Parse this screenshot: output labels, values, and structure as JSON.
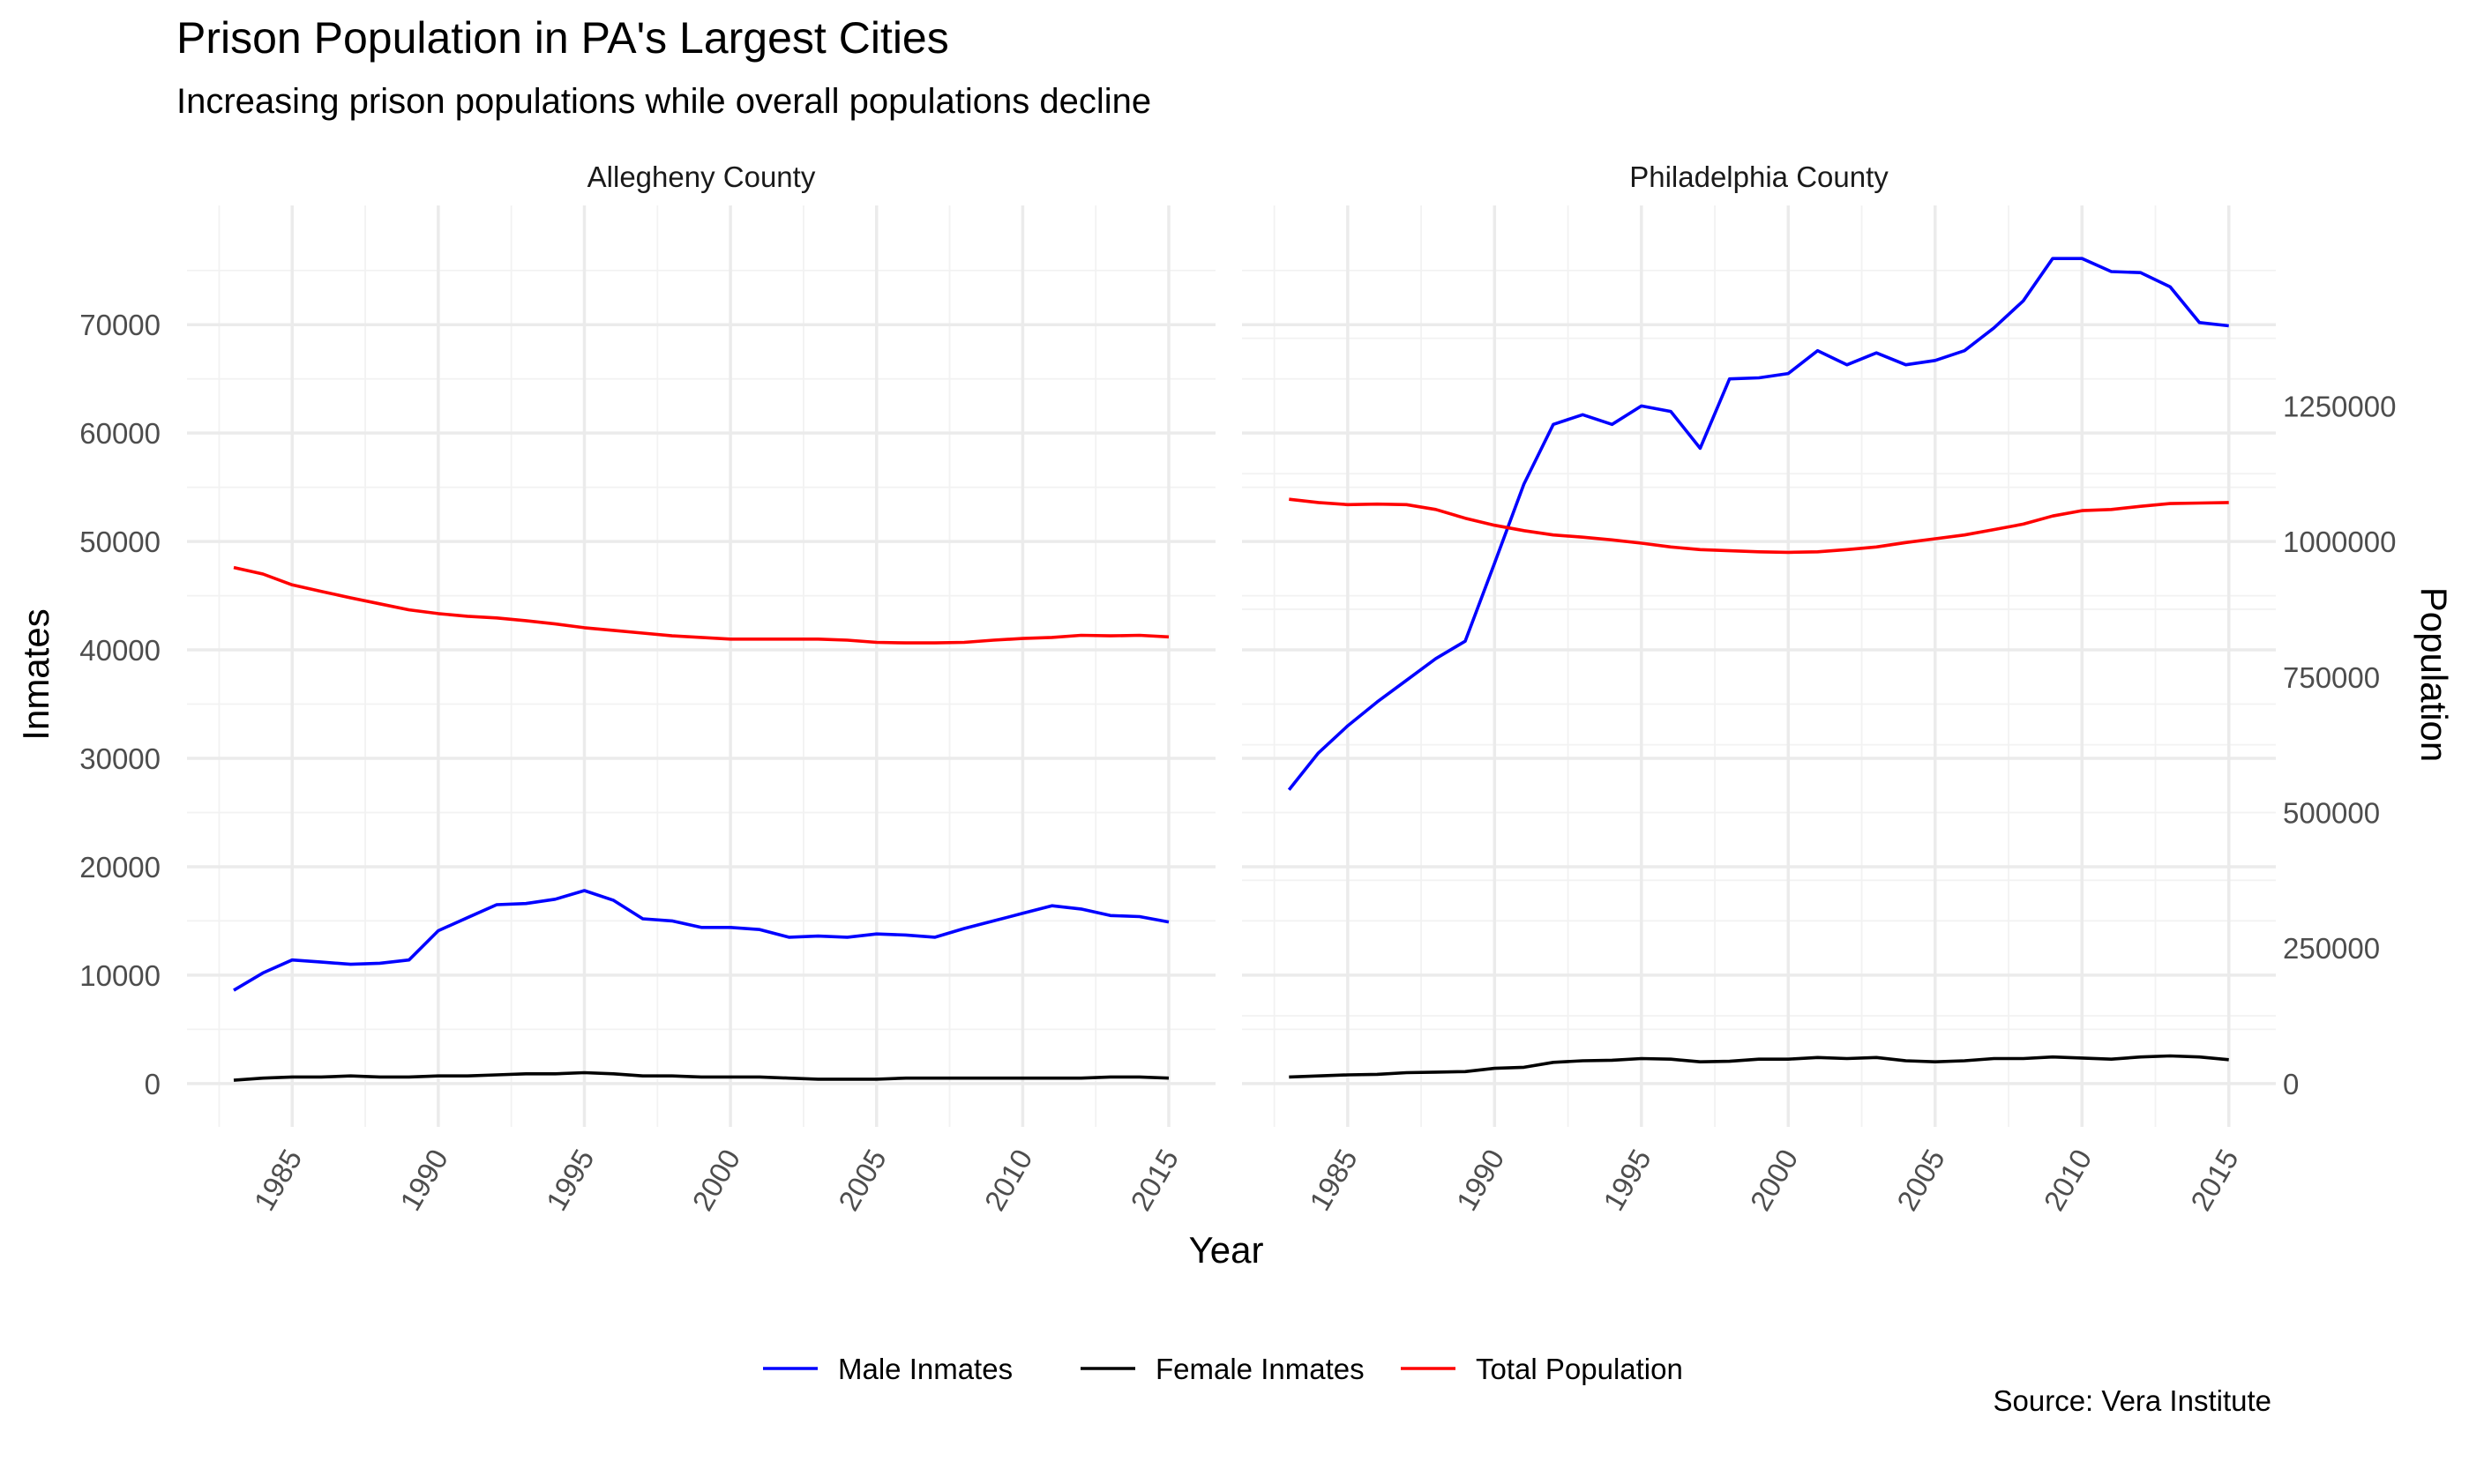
{
  "chart_data": {
    "type": "line",
    "title": "Prison Population in PA's Largest Cities",
    "subtitle": "Increasing prison populations while overall populations decline",
    "xlabel": "Year",
    "ylabel_left": "Inmates",
    "ylabel_right": "Population",
    "caption": "Source: Vera Institute",
    "xlim": [
      1983,
      2015
    ],
    "ylim_left": [
      -4000,
      81000
    ],
    "ylim_right": [
      -80000,
      1620000
    ],
    "right_axis_factor": 20,
    "x_ticks": [
      1985,
      1990,
      1995,
      2000,
      2005,
      2010,
      2015
    ],
    "x_tick_labels": [
      "1985",
      "1990",
      "1995",
      "2000",
      "2005",
      "2010",
      "2015"
    ],
    "y_ticks_left": [
      0,
      10000,
      20000,
      30000,
      40000,
      50000,
      60000,
      70000
    ],
    "y_tick_labels_left": [
      "0",
      "10000",
      "20000",
      "30000",
      "40000",
      "50000",
      "60000",
      "70000"
    ],
    "y_ticks_right": [
      0,
      250000,
      500000,
      750000,
      1000000,
      1250000
    ],
    "y_tick_labels_right": [
      "0",
      "250000",
      "500000",
      "750000",
      "1000000",
      "1250000"
    ],
    "grid": true,
    "legend_position": "bottom",
    "legend": [
      {
        "label": "Male Inmates",
        "color": "#0000ff"
      },
      {
        "label": "Female Inmates",
        "color": "#000000"
      },
      {
        "label": "Total Population",
        "color": "#ff0000"
      }
    ],
    "x": [
      1983,
      1984,
      1985,
      1986,
      1987,
      1988,
      1989,
      1990,
      1991,
      1992,
      1993,
      1994,
      1995,
      1996,
      1997,
      1998,
      1999,
      2000,
      2001,
      2002,
      2003,
      2004,
      2005,
      2006,
      2007,
      2008,
      2009,
      2010,
      2011,
      2012,
      2013,
      2014,
      2015
    ],
    "panels": [
      {
        "name": "Allegheny County",
        "series": [
          {
            "name": "Male Inmates",
            "color": "#0000ff",
            "values": [
              8600,
              10200,
              11400,
              11200,
              11000,
              11100,
              11400,
              14100,
              15300,
              16500,
              16600,
              17000,
              17800,
              16900,
              15200,
              15000,
              14400,
              14400,
              14200,
              13500,
              13600,
              13500,
              13800,
              13700,
              13500,
              14300,
              15000,
              15700,
              16400,
              16100,
              15500,
              15400,
              14900
            ]
          },
          {
            "name": "Female Inmates",
            "color": "#000000",
            "values": [
              300,
              500,
              600,
              600,
              700,
              600,
              600,
              700,
              700,
              800,
              900,
              900,
              1000,
              900,
              700,
              700,
              600,
              600,
              600,
              500,
              400,
              400,
              400,
              500,
              500,
              500,
              500,
              500,
              500,
              500,
              600,
              600,
              500
            ]
          },
          {
            "name": "Total Population",
            "color": "#ff0000",
            "values": [
              952000,
              940000,
              920000,
              908000,
              896000,
              885000,
              874000,
              867000,
              862000,
              859000,
              854000,
              848000,
              841000,
              836000,
              831000,
              826000,
              823000,
              820000,
              820000,
              820000,
              820000,
              818000,
              814000,
              813000,
              813000,
              814000,
              818000,
              821000,
              823000,
              827000,
              826000,
              827000,
              824000
            ]
          }
        ]
      },
      {
        "name": "Philadelphia County",
        "series": [
          {
            "name": "Male Inmates",
            "color": "#0000ff",
            "values": [
              27100,
              30500,
              33000,
              35200,
              37200,
              39200,
              40800,
              48000,
              55300,
              60800,
              61700,
              60800,
              62500,
              62000,
              58600,
              65000,
              65100,
              65500,
              67600,
              66300,
              67400,
              66300,
              66700,
              67600,
              69700,
              72200,
              76100,
              76100,
              74900,
              74800,
              73500,
              70200,
              69900
            ]
          },
          {
            "name": "Female Inmates",
            "color": "#000000",
            "values": [
              600,
              700,
              800,
              850,
              1000,
              1050,
              1100,
              1400,
              1500,
              1950,
              2100,
              2150,
              2300,
              2250,
              2000,
              2050,
              2250,
              2250,
              2400,
              2300,
              2400,
              2100,
              2000,
              2100,
              2300,
              2300,
              2450,
              2350,
              2250,
              2450,
              2550,
              2450,
              2200
            ]
          },
          {
            "name": "Total Population",
            "color": "#ff0000",
            "values": [
              1078000,
              1072000,
              1068000,
              1069000,
              1068000,
              1059000,
              1043000,
              1030000,
              1020000,
              1012000,
              1008000,
              1003000,
              997000,
              990000,
              985000,
              983000,
              981000,
              980000,
              981000,
              985000,
              990000,
              998000,
              1005000,
              1012000,
              1022000,
              1032000,
              1047000,
              1057000,
              1059000,
              1065000,
              1070000,
              1071000,
              1072000
            ]
          }
        ]
      }
    ]
  }
}
